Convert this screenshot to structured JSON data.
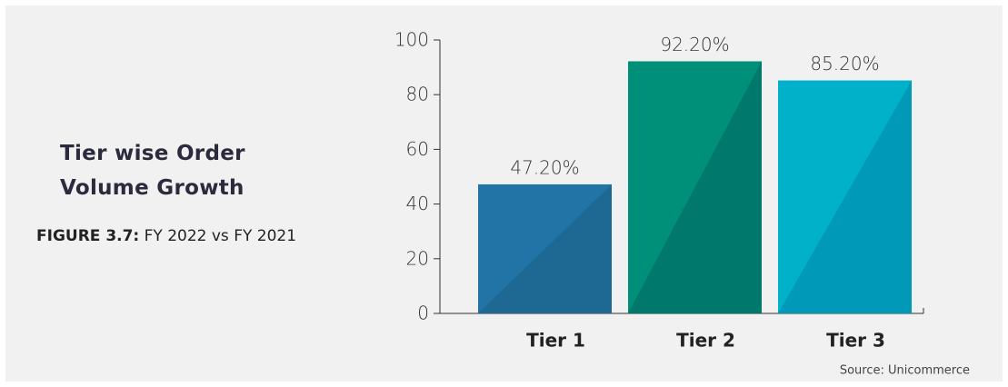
{
  "chart_data": {
    "type": "bar",
    "title": "Tier wise Order Volume Growth",
    "figure_label": "FIGURE 3.7:",
    "subtitle": "FY 2022 vs FY 2021",
    "source": "Source: Unicommerce",
    "categories": [
      "Tier 1",
      "Tier 2",
      "Tier 3"
    ],
    "values": [
      47.2,
      92.2,
      85.2
    ],
    "value_labels": [
      "47.20%",
      "92.20%",
      "85.20%"
    ],
    "colors": [
      "#2174a5",
      "#008f79",
      "#00b1c9"
    ],
    "shade_colors": [
      "#1e6994",
      "#00786b",
      "#0099b8"
    ],
    "ylim": [
      0,
      100
    ],
    "yticks": [
      0,
      20,
      40,
      60,
      80,
      100
    ],
    "grid": false
  }
}
